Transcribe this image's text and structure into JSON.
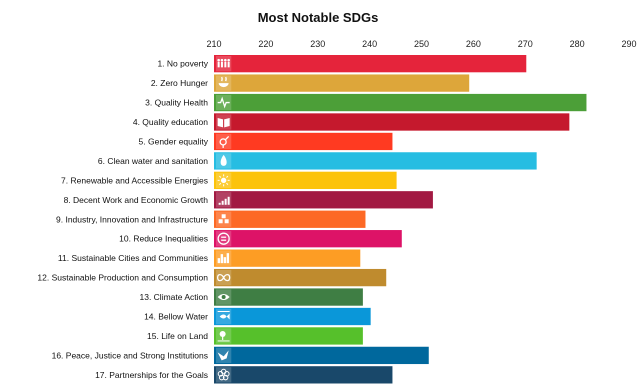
{
  "chart_data": {
    "type": "bar",
    "orientation": "horizontal",
    "title": "Most Notable SDGs",
    "xlabel": "",
    "ylabel": "",
    "xlim": [
      210,
      290
    ],
    "xticks": [
      210,
      220,
      230,
      240,
      250,
      260,
      270,
      280,
      290
    ],
    "axis_position": "top",
    "grid": false,
    "legend": "none",
    "categories": [
      "1. No poverty",
      "2. Zero Hunger",
      "3. Quality Health",
      "4. Quality education",
      "5. Gender equality",
      "6. Clean water and sanitation",
      "7. Renewable and Accessible Energies",
      "8. Decent Work and Economic Growth",
      "9. Industry, Innovation and Infrastructure",
      "10. Reduce Inequalities",
      "11. Sustainable Cities and Communities",
      "12. Sustainable Production and Consumption",
      "13. Climate Action",
      "14. Bellow Water",
      "15. Life on Land",
      "16. Peace, Justice and Strong Institutions",
      "17. Partnerships for the Goals"
    ],
    "values": [
      270.2,
      259.2,
      281.8,
      278.5,
      244.4,
      272.2,
      245.2,
      252.2,
      239.2,
      246.2,
      238.2,
      243.2,
      238.7,
      240.2,
      238.7,
      251.4,
      244.4
    ],
    "colors": [
      "#e5243b",
      "#dda63a",
      "#4c9f38",
      "#c5192d",
      "#ff3a21",
      "#26bde2",
      "#fcc30b",
      "#a21942",
      "#fd6925",
      "#dd1367",
      "#fd9d24",
      "#bf8b2e",
      "#3f7e44",
      "#0a97d9",
      "#56c02b",
      "#00689d",
      "#19486a"
    ],
    "icons": [
      "people-icon",
      "bowl-icon",
      "heartbeat-icon",
      "book-icon",
      "gender-icon",
      "water-drop-icon",
      "sun-icon",
      "growth-chart-icon",
      "cubes-icon",
      "equality-icon",
      "city-icon",
      "infinity-icon",
      "eye-globe-icon",
      "fish-icon",
      "tree-icon",
      "dove-icon",
      "flower-ring-icon"
    ]
  }
}
